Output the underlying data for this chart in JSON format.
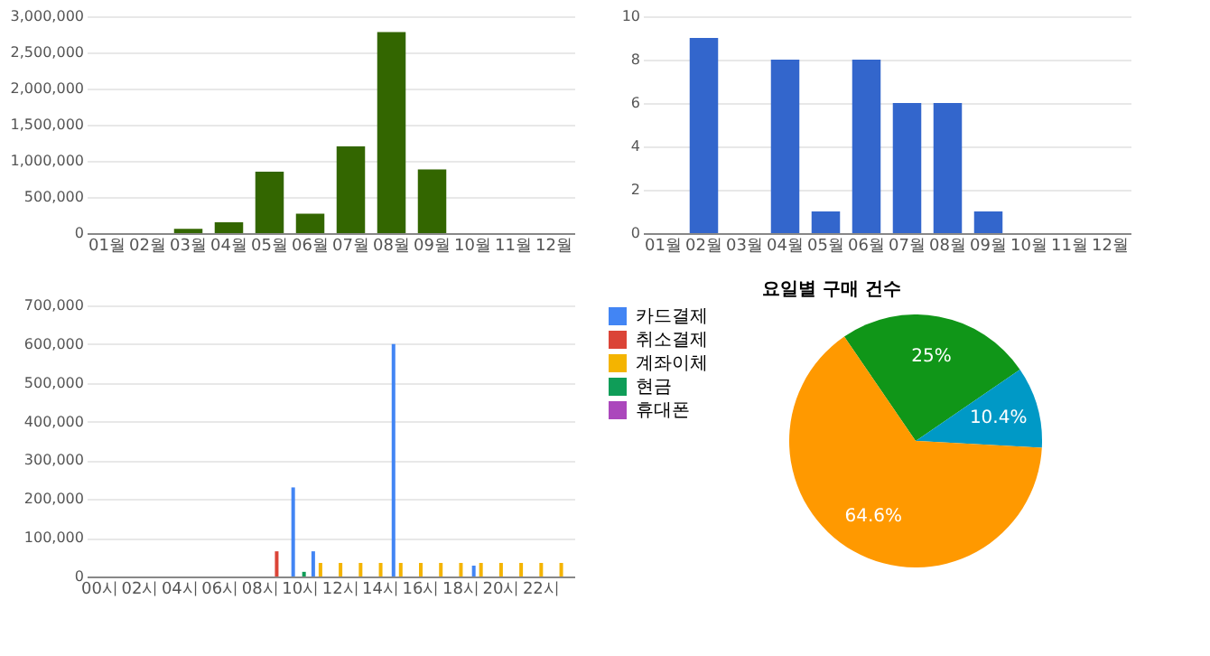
{
  "chart_data": [
    {
      "type": "bar",
      "categories": [
        "01월",
        "02월",
        "03월",
        "04월",
        "05월",
        "06월",
        "07월",
        "08월",
        "09월",
        "10월",
        "11월",
        "12월"
      ],
      "values": [
        0,
        0,
        60000,
        150000,
        850000,
        270000,
        1200000,
        2780000,
        880000,
        0,
        0,
        0
      ],
      "color": "#336600",
      "ylim": [
        0,
        3000000
      ],
      "yticks": [
        0,
        {
          "value": 500000,
          "label": "500,000"
        },
        {
          "value": 1000000,
          "label": "1,000,000"
        },
        {
          "value": 1500000,
          "label": "1,500,000"
        },
        {
          "value": 2000000,
          "label": "2,000,000"
        },
        {
          "value": 2500000,
          "label": "2,500,000"
        },
        {
          "value": 3000000,
          "label": "3,000,000"
        }
      ],
      "grid": "y",
      "legend": false
    },
    {
      "type": "bar",
      "categories": [
        "01월",
        "02월",
        "03월",
        "04월",
        "05월",
        "06월",
        "07월",
        "08월",
        "09월",
        "10월",
        "11월",
        "12월"
      ],
      "values": [
        0,
        9,
        0,
        8,
        1,
        8,
        6,
        6,
        1,
        0,
        0,
        0
      ],
      "color": "#3366cc",
      "ylim": [
        0,
        10
      ],
      "yticks": [
        0,
        2,
        4,
        6,
        8,
        10
      ],
      "grid": "y",
      "legend": false
    },
    {
      "type": "bar",
      "categories": [
        "00시",
        null,
        "02시",
        null,
        "04시",
        null,
        "06시",
        null,
        "08시",
        null,
        "10시",
        null,
        "12시",
        null,
        "14시",
        null,
        "16시",
        null,
        "18시",
        null,
        "20시",
        null,
        "22시",
        null
      ],
      "ylim": [
        0,
        700000
      ],
      "yticks": [
        0,
        {
          "value": 100000,
          "label": "100,000"
        },
        {
          "value": 200000,
          "label": "200,000"
        },
        {
          "value": 300000,
          "label": "300,000"
        },
        {
          "value": 400000,
          "label": "400,000"
        },
        {
          "value": 500000,
          "label": "500,000"
        },
        {
          "value": 600000,
          "label": "600,000"
        },
        {
          "value": 700000,
          "label": "700,000"
        }
      ],
      "grid": "y",
      "legend": "right",
      "series": [
        {
          "name": "카드결제",
          "color": "#4285f4",
          "values": [
            0,
            0,
            0,
            0,
            0,
            0,
            0,
            0,
            0,
            0,
            230000,
            65000,
            0,
            0,
            0,
            600000,
            0,
            0,
            0,
            28000,
            0,
            0,
            0,
            0
          ]
        },
        {
          "name": "취소결제",
          "color": "#db4437",
          "values": [
            0,
            0,
            0,
            0,
            0,
            0,
            0,
            0,
            0,
            65000,
            0,
            0,
            0,
            0,
            0,
            0,
            0,
            0,
            0,
            0,
            0,
            0,
            0,
            0
          ]
        },
        {
          "name": "계좌이체",
          "color": "#f4b400",
          "values": [
            0,
            0,
            0,
            0,
            0,
            0,
            0,
            0,
            0,
            0,
            0,
            35000,
            35000,
            35000,
            35000,
            35000,
            35000,
            35000,
            35000,
            35000,
            35000,
            35000,
            35000,
            35000
          ]
        },
        {
          "name": "현금",
          "color": "#0f9d58",
          "values": [
            0,
            0,
            0,
            0,
            0,
            0,
            0,
            0,
            0,
            0,
            12000,
            0,
            0,
            0,
            0,
            0,
            0,
            0,
            0,
            0,
            0,
            0,
            0,
            0
          ]
        },
        {
          "name": "휴대폰",
          "color": "#ab47bc",
          "values": [
            0,
            0,
            0,
            0,
            0,
            0,
            0,
            0,
            0,
            0,
            0,
            0,
            0,
            0,
            0,
            0,
            0,
            0,
            0,
            0,
            0,
            0,
            0,
            0
          ]
        }
      ]
    },
    {
      "type": "pie",
      "title": "요일별 구매 건수",
      "categories": [
        null,
        null,
        null
      ],
      "values": [
        25,
        10.4,
        64.6
      ],
      "colors": [
        "#109618",
        "#0099c6",
        "#ff9900"
      ],
      "value_labels": [
        "25%",
        "10.4%",
        "64.6%"
      ],
      "legend": false
    }
  ]
}
